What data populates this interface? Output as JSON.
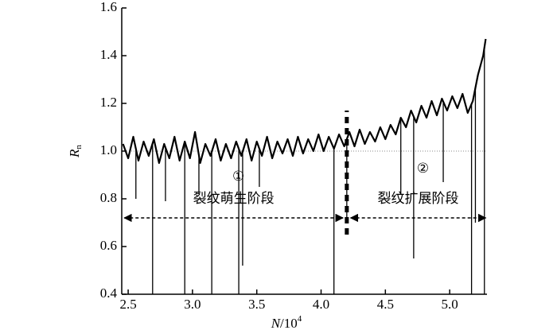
{
  "chart_data": {
    "type": "line",
    "xlabel": [
      "N",
      "/10",
      "4"
    ],
    "ylabel": [
      "R",
      "n"
    ],
    "xlim": [
      2.45,
      5.29
    ],
    "ylim": [
      0.4,
      1.6
    ],
    "xticks": [
      2.5,
      {
        "value": 3,
        "label": "3.0"
      },
      3.5,
      {
        "value": 4,
        "label": "4.0"
      },
      4.5,
      {
        "value": 5,
        "label": "5.0"
      }
    ],
    "yticks": [
      0.4,
      0.6,
      0.8,
      {
        "value": 1,
        "label": "1.0"
      },
      1.2,
      1.4,
      1.6
    ],
    "hline": 1,
    "x": [
      2.46,
      2.5,
      2.54,
      2.58,
      2.62,
      2.66,
      2.7,
      2.74,
      2.78,
      2.82,
      2.86,
      2.9,
      2.94,
      2.98,
      3.02,
      3.06,
      3.1,
      3.14,
      3.18,
      3.22,
      3.26,
      3.3,
      3.34,
      3.38,
      3.42,
      3.46,
      3.5,
      3.54,
      3.58,
      3.62,
      3.66,
      3.7,
      3.74,
      3.78,
      3.82,
      3.86,
      3.9,
      3.94,
      3.98,
      4.02,
      4.06,
      4.1,
      4.14,
      4.18,
      4.22,
      4.26,
      4.3,
      4.34,
      4.38,
      4.42,
      4.46,
      4.5,
      4.54,
      4.58,
      4.62,
      4.66,
      4.7,
      4.74,
      4.78,
      4.82,
      4.86,
      4.9,
      4.94,
      4.98,
      5.02,
      5.06,
      5.1,
      5.14,
      5.18,
      5.22,
      5.26,
      5.28
    ],
    "series": [
      {
        "color": "#000000",
        "values": [
          1.03,
          0.97,
          1.06,
          0.96,
          1.04,
          0.98,
          1.05,
          0.95,
          1.03,
          0.97,
          1.06,
          0.96,
          1.04,
          0.97,
          1.08,
          0.95,
          1.03,
          0.98,
          1.05,
          0.96,
          1.03,
          0.97,
          1.04,
          0.98,
          1.05,
          0.96,
          1.04,
          0.98,
          1.06,
          0.97,
          1.04,
          0.99,
          1.05,
          0.98,
          1.06,
          0.99,
          1.05,
          1.0,
          1.07,
          1.0,
          1.06,
          1.01,
          1.07,
          1.02,
          1.08,
          1.02,
          1.09,
          1.03,
          1.08,
          1.04,
          1.1,
          1.05,
          1.11,
          1.07,
          1.14,
          1.1,
          1.17,
          1.12,
          1.19,
          1.14,
          1.21,
          1.15,
          1.22,
          1.17,
          1.23,
          1.18,
          1.24,
          1.16,
          1.21,
          1.32,
          1.4,
          1.47
        ]
      },
      {
        "color": "#000000",
        "x": [
          2.56,
          2.69,
          2.79,
          2.94,
          3.05,
          3.15,
          3.36,
          3.39,
          3.52,
          4.1,
          4.2,
          4.62,
          4.72,
          4.95,
          5.17,
          5.2,
          5.27
        ],
        "values": [
          0.8,
          0.4,
          0.79,
          0.4,
          0.82,
          0.4,
          0.4,
          0.52,
          0.85,
          0.4,
          0.72,
          0.82,
          0.55,
          0.87,
          0.4,
          0.7,
          0.4
        ]
      }
    ],
    "divider": {
      "x": 4.2,
      "y": [
        0.65,
        1.17
      ]
    },
    "stages": [
      {
        "marker": "①",
        "label": "裂纹萌生阶段",
        "from": 2.47,
        "to": 4.17,
        "y": 0.72
      },
      {
        "marker": "②",
        "label": "裂纹扩展阶段",
        "from": 4.23,
        "to": 5.28,
        "y": 0.72
      }
    ]
  }
}
